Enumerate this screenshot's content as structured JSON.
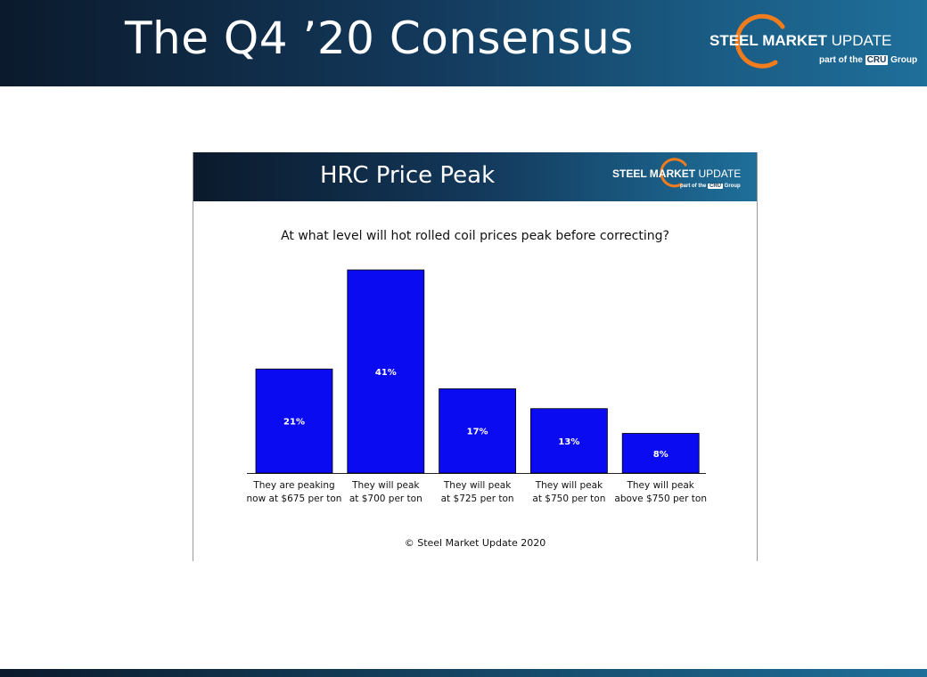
{
  "slide": {
    "title": "The Q4 ’20 Consensus"
  },
  "brand": {
    "name_bold": "STEEL MARKET",
    "name_light": " UPDATE",
    "sub_prefix": "part of the ",
    "sub_box": "CRU",
    "sub_suffix": " Group",
    "arc_color": "#f07c1e"
  },
  "chart_data": {
    "type": "bar",
    "title": "HRC Price Peak",
    "question": "At what level will hot rolled coil prices peak before correcting?",
    "categories": [
      [
        "They are peaking",
        "now at $675 per ton"
      ],
      [
        "They will peak",
        "at $700 per ton"
      ],
      [
        "They will peak",
        "at $725 per ton"
      ],
      [
        "They will peak",
        "at $750 per ton"
      ],
      [
        "They will peak",
        "above $750 per ton"
      ]
    ],
    "values": [
      21,
      41,
      17,
      13,
      8
    ],
    "value_labels": [
      "21%",
      "41%",
      "17%",
      "13%",
      "8%"
    ],
    "unit": "%",
    "ylim": [
      0,
      41
    ],
    "bar_color": "#0b0bf2",
    "grid": false,
    "legend": "none",
    "footer": "© Steel Market Update 2020"
  }
}
